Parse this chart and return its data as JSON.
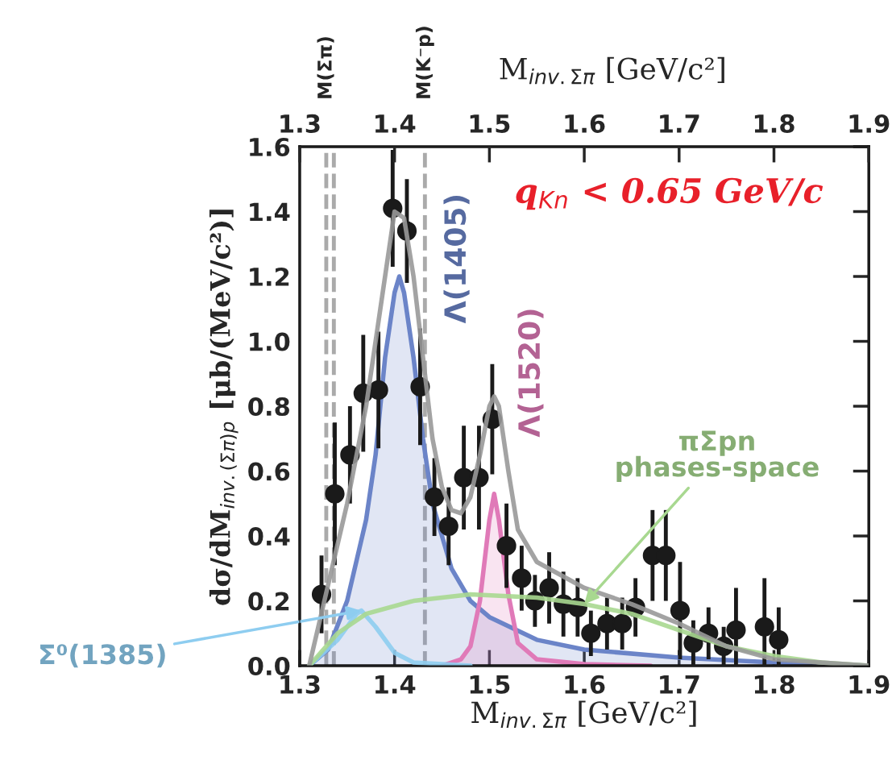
{
  "chart_data": {
    "type": "scatter",
    "xlabel": "M$_{inv.Σπ}$ [GeV/c²]",
    "x2label": "M$_{inv.Σπ}$ [GeV/c²]",
    "ylabel": "dσ/dM$_{inv.(Σπ)p}$ [μb/(MeV/c²)]",
    "xlim": [
      1.3,
      1.9
    ],
    "xticks": [
      1.3,
      1.4,
      1.5,
      1.6,
      1.7,
      1.8,
      1.9
    ],
    "x2lim": [
      1.3,
      1.9
    ],
    "x2ticks": [
      1.3,
      1.4,
      1.5,
      1.6,
      1.7,
      1.8,
      1.9
    ],
    "ylim": [
      0,
      1.6
    ],
    "yticks": [
      {
        "value": 0,
        "label": "0.0"
      },
      {
        "value": 0.2,
        "label": "0.2"
      },
      {
        "value": 0.4,
        "label": "0.4"
      },
      {
        "value": 0.6,
        "label": "0.6"
      },
      {
        "value": 0.8,
        "label": "0.8"
      },
      {
        "value": 1.0,
        "label": "1.0"
      },
      {
        "value": 1.2,
        "label": "1.2"
      },
      {
        "value": 1.4,
        "label": "1.4"
      },
      {
        "value": 1.6,
        "label": "1.6"
      }
    ],
    "grid": false,
    "legend": false,
    "series": [
      {
        "type": "area",
        "color": "#6b84c8",
        "x": [
          1.31,
          1.33,
          1.35,
          1.37,
          1.38,
          1.39,
          1.4,
          1.405,
          1.41,
          1.42,
          1.43,
          1.44,
          1.46,
          1.48,
          1.5,
          1.55,
          1.6,
          1.7,
          1.8,
          1.9
        ],
        "values": [
          0,
          0.05,
          0.2,
          0.45,
          0.65,
          0.95,
          1.15,
          1.2,
          1.15,
          0.95,
          0.7,
          0.5,
          0.3,
          0.2,
          0.15,
          0.08,
          0.05,
          0.025,
          0.01,
          0
        ]
      },
      {
        "type": "area",
        "color": "#e07ab8",
        "x": [
          1.45,
          1.47,
          1.48,
          1.49,
          1.5,
          1.505,
          1.51,
          1.52,
          1.53,
          1.55,
          1.6,
          1.67
        ],
        "values": [
          0,
          0.02,
          0.06,
          0.2,
          0.45,
          0.53,
          0.45,
          0.22,
          0.07,
          0.02,
          0.005,
          0
        ]
      },
      {
        "type": "line",
        "color": "#8ecdf0",
        "x": [
          1.31,
          1.34,
          1.36,
          1.365,
          1.38,
          1.4,
          1.42,
          1.48
        ],
        "values": [
          0,
          0.08,
          0.16,
          0.17,
          0.12,
          0.04,
          0.01,
          0
        ]
      },
      {
        "type": "line",
        "color": "#a8d890",
        "x": [
          1.31,
          1.34,
          1.37,
          1.42,
          1.48,
          1.55,
          1.6,
          1.65,
          1.7,
          1.75,
          1.8,
          1.85,
          1.9
        ],
        "values": [
          0,
          0.1,
          0.16,
          0.2,
          0.22,
          0.21,
          0.19,
          0.16,
          0.11,
          0.06,
          0.03,
          0.01,
          0
        ]
      },
      {
        "type": "line",
        "color": "#999999",
        "x": [
          1.31,
          1.33,
          1.35,
          1.37,
          1.385,
          1.4,
          1.41,
          1.42,
          1.43,
          1.44,
          1.45,
          1.46,
          1.47,
          1.48,
          1.49,
          1.5,
          1.505,
          1.51,
          1.52,
          1.53,
          1.55,
          1.6,
          1.65,
          1.7,
          1.75,
          1.8,
          1.9
        ],
        "values": [
          0,
          0.25,
          0.5,
          0.8,
          1.1,
          1.4,
          1.38,
          1.2,
          0.95,
          0.7,
          0.55,
          0.48,
          0.47,
          0.52,
          0.65,
          0.8,
          0.83,
          0.8,
          0.6,
          0.42,
          0.32,
          0.24,
          0.19,
          0.13,
          0.06,
          0.02,
          0
        ]
      },
      {
        "color": "#1a1a1a",
        "marker": "circle",
        "x": [
          1.323,
          1.337,
          1.353,
          1.367,
          1.383,
          1.398,
          1.413,
          1.427,
          1.442,
          1.457,
          1.473,
          1.489,
          1.503,
          1.518,
          1.534,
          1.548,
          1.563,
          1.578,
          1.593,
          1.607,
          1.624,
          1.64,
          1.654,
          1.672,
          1.686,
          1.701,
          1.715,
          1.731,
          1.747,
          1.76,
          1.79,
          1.805
        ],
        "values": [
          0.22,
          0.53,
          0.65,
          0.84,
          0.85,
          1.41,
          1.34,
          0.86,
          0.52,
          0.43,
          0.58,
          0.58,
          0.76,
          0.37,
          0.27,
          0.2,
          0.24,
          0.19,
          0.18,
          0.1,
          0.13,
          0.13,
          0.18,
          0.34,
          0.34,
          0.17,
          0.07,
          0.1,
          0.06,
          0.11,
          0.12,
          0.08
        ],
        "errors": [
          0.12,
          0.22,
          0.15,
          0.18,
          0.18,
          0.18,
          0.16,
          0.18,
          0.12,
          0.12,
          0.16,
          0.16,
          0.17,
          0.13,
          0.1,
          0.08,
          0.11,
          0.1,
          0.09,
          0.07,
          0.08,
          0.08,
          0.09,
          0.14,
          0.14,
          0.15,
          0.07,
          0.08,
          0.06,
          0.13,
          0.15,
          0.1
        ]
      }
    ],
    "ref_lines": [
      {
        "axis": "x",
        "value": 1.328,
        "label": "M(Σπ)",
        "color": "#aaaaaa",
        "line_style": "dashed"
      },
      {
        "axis": "x",
        "value": 1.336,
        "label": null,
        "color": "#aaaaaa",
        "line_style": "dashed"
      },
      {
        "axis": "x",
        "value": 1.432,
        "label": "M(K⁻p)",
        "color": "#aaaaaa",
        "line_style": "dashed"
      }
    ],
    "annotations": [
      "q$_{Kn}$ < 0.65 GeV/c",
      {
        "text": "Λ(1405)",
        "x": 1.405,
        "y": 1.2
      },
      {
        "text": "Λ(1520)",
        "x": 1.505,
        "y": 0.53
      },
      {
        "text": "πΣpn\nphases-space",
        "x": 1.6,
        "y": 0.19
      },
      {
        "text": "Σ⁰(1385)",
        "x": 1.365,
        "y": 0.17
      }
    ]
  }
}
